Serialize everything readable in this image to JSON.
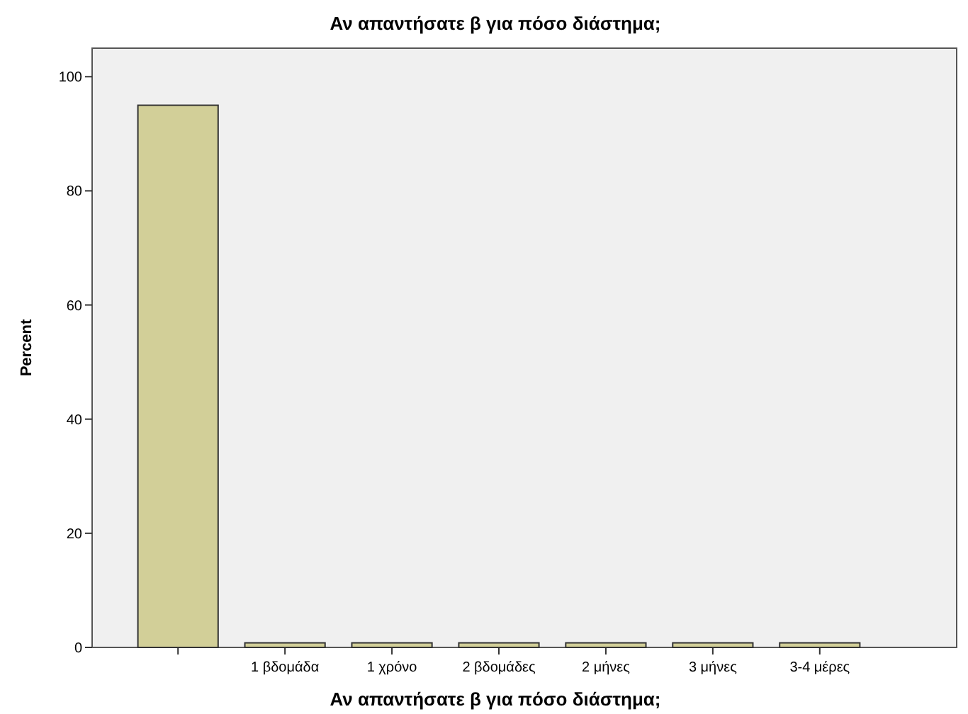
{
  "chart_data": {
    "type": "bar",
    "title": "Αν απαντήσατε β για πόσο διάστημα;",
    "xlabel": "Αν απαντήσατε β για πόσο διάστημα;",
    "ylabel": "Percent",
    "categories": [
      null,
      "1 βδομάδα",
      "1 χρόνο",
      "2 βδομάδες",
      "2 μήνες",
      "3 μήνες",
      "3-4 μέρες"
    ],
    "values": [
      95,
      0.8,
      0.8,
      0.8,
      0.8,
      0.8,
      0.8
    ],
    "color": "#d2cf98",
    "ylim": [
      0,
      105
    ],
    "yticks": [
      0,
      20,
      40,
      60,
      80,
      100
    ],
    "grid": false
  }
}
